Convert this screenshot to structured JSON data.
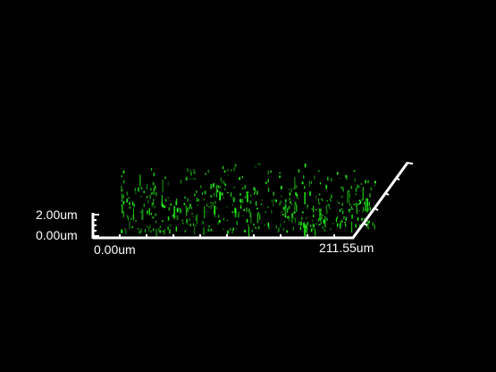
{
  "axes": {
    "z_labels": [
      "2.00um",
      "0.00um"
    ],
    "x_labels": [
      "0.00um",
      "211.55um"
    ]
  }
}
